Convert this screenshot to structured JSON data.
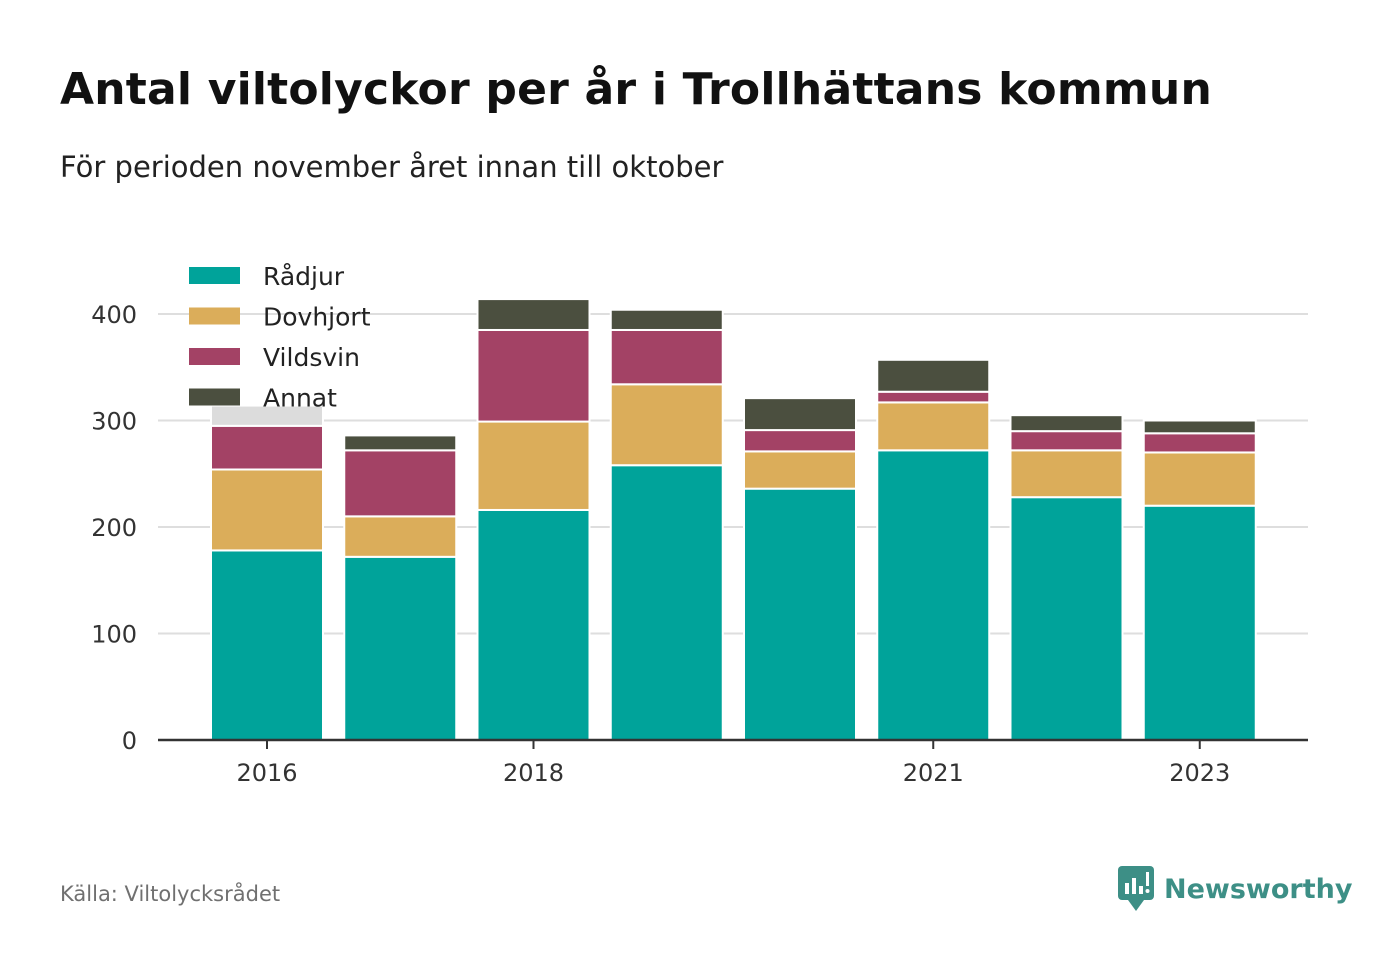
{
  "header": {
    "title": "Antal viltolyckor per år i Trollhättans kommun",
    "subtitle": "För perioden november året innan till oktober"
  },
  "footer": {
    "source": "Källa: Viltolycksrådet",
    "brand": "Newsworthy",
    "brand_color": "#3d8f86"
  },
  "chart_data": {
    "type": "bar",
    "stacked": true,
    "title": "Antal viltolyckor per år i Trollhättans kommun",
    "subtitle": "För perioden november året innan till oktober",
    "xlabel": "",
    "ylabel": "",
    "categories": [
      "2016",
      "2017",
      "2018",
      "2019",
      "2020",
      "2021",
      "2022",
      "2023"
    ],
    "x_tick_labels": [
      "2016",
      "",
      "2018",
      "",
      "",
      "2021",
      "",
      "2023"
    ],
    "y_ticks": [
      0,
      100,
      200,
      300,
      400
    ],
    "ylim": [
      0,
      420
    ],
    "grid": true,
    "legend_position": "top-left",
    "series": [
      {
        "name": "Rådjur",
        "color": "#00a39a",
        "values": [
          178,
          172,
          216,
          258,
          236,
          272,
          228,
          220
        ]
      },
      {
        "name": "Dovhjort",
        "color": "#dbad5a",
        "values": [
          76,
          38,
          83,
          76,
          35,
          45,
          44,
          50
        ]
      },
      {
        "name": "Vildsvin",
        "color": "#a34265",
        "values": [
          41,
          62,
          86,
          51,
          20,
          10,
          18,
          18
        ]
      },
      {
        "name": "Annat",
        "color": "#4b4f3f",
        "values": [
          0,
          14,
          29,
          19,
          30,
          30,
          15,
          12
        ]
      }
    ],
    "extra_segment": {
      "color": "#dcdcdc",
      "category": "2016",
      "value": 19
    }
  }
}
